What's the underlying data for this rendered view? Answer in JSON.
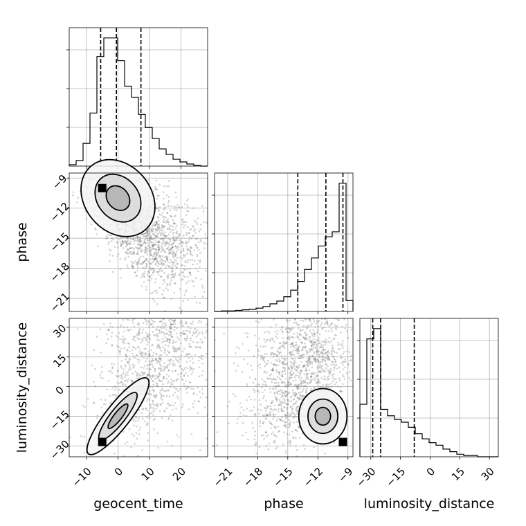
{
  "chart_data": {
    "type": "corner",
    "parameters": [
      "geocent_time",
      "phase",
      "luminosity_distance"
    ],
    "axes": {
      "geocent_time": {
        "range": [
          -15.5,
          28.5
        ],
        "ticks": [
          -10,
          0,
          10,
          20
        ],
        "tick_labels": [
          "−10",
          "0",
          "10",
          "20"
        ],
        "quantiles": [
          -5.5,
          -0.5,
          7.3
        ]
      },
      "phase": {
        "range": [
          -22.3,
          -8.5
        ],
        "ticks": [
          -21,
          -18,
          -15,
          -12,
          -9
        ],
        "tick_labels": [
          "−21",
          "−18",
          "−15",
          "−12",
          "−9"
        ],
        "quantiles": [
          -14.0,
          -11.2,
          -9.5
        ]
      },
      "luminosity_distance": {
        "range": [
          -35.5,
          34.5
        ],
        "ticks": [
          -30,
          -15,
          0,
          15,
          30
        ],
        "tick_labels": [
          "−30",
          "−15",
          "0",
          "15",
          "30"
        ],
        "quantiles": [
          -29.0,
          -25.0,
          -8.0
        ]
      }
    },
    "histograms": {
      "geocent_time": {
        "bin_edges": [
          -15.5,
          -13.3,
          -11.1,
          -8.9,
          -6.7,
          -4.5,
          -2.3,
          -0.1,
          2.1,
          4.3,
          6.5,
          8.7,
          10.9,
          13.1,
          15.3,
          17.5,
          19.7,
          21.9,
          24.1,
          26.3,
          28.5
        ],
        "counts": [
          2,
          8,
          33,
          77,
          159,
          186,
          186,
          153,
          116,
          100,
          75,
          56,
          40,
          25,
          17,
          10,
          6,
          3,
          1,
          0
        ]
      },
      "phase": {
        "bin_edges": [
          -22.3,
          -21.61,
          -20.92,
          -20.23,
          -19.54,
          -18.85,
          -18.16,
          -17.47,
          -16.78,
          -16.09,
          -15.4,
          -14.71,
          -14.02,
          -13.33,
          -12.64,
          -11.95,
          -11.26,
          -10.57,
          -9.88,
          -9.19,
          -8.5
        ],
        "counts": [
          0,
          1,
          1,
          2,
          3,
          4,
          6,
          9,
          14,
          19,
          27,
          39,
          55,
          77,
          98,
          120,
          137,
          146,
          235,
          20
        ]
      },
      "luminosity_distance": {
        "bin_edges": [
          -35.5,
          -32.0,
          -28.5,
          -25.0,
          -21.5,
          -18.0,
          -14.5,
          -11.0,
          -7.5,
          -4.0,
          -0.5,
          3.0,
          6.5,
          10.0,
          13.5,
          17.0,
          20.5,
          24.0,
          27.5,
          31.0,
          34.5
        ],
        "counts": [
          41,
          92,
          100,
          37,
          32,
          29,
          27,
          23,
          18,
          14,
          11,
          9,
          6,
          4,
          2,
          1,
          1,
          0,
          0,
          0
        ]
      }
    },
    "correlations": {
      "phase_vs_geocent_time": -0.86,
      "luminosity_distance_vs_geocent_time": 0.8,
      "luminosity_distance_vs_phase": 0.55
    },
    "grid": true,
    "legend": "none"
  }
}
